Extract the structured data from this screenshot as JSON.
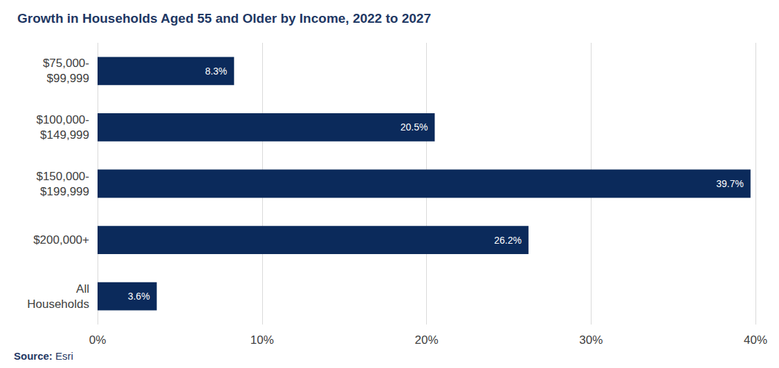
{
  "chart_data": {
    "type": "bar",
    "title": "Growth in Households Aged 55 and Older by Income, 2022 to 2027",
    "source": "Source: Esri",
    "orientation": "horizontal",
    "categories": [
      "$75,000-\n$99,999",
      "$100,000-\n$149,999",
      "$150,000-\n$199,999",
      "$200,000+",
      "All\nHouseholds"
    ],
    "values": [
      8.3,
      20.5,
      39.7,
      26.2,
      3.6
    ],
    "value_labels": [
      "8.3%",
      "20.5%",
      "39.7%",
      "26.2%",
      "3.6%"
    ],
    "data_labels": true,
    "color": "#0b2a5b",
    "xlim": [
      0,
      40
    ],
    "xticks": [
      {
        "value": 0,
        "label": "0%"
      },
      {
        "value": 10,
        "label": "10%"
      },
      {
        "value": 20,
        "label": "20%"
      },
      {
        "value": 30,
        "label": "30%"
      },
      {
        "value": 40,
        "label": "40%"
      }
    ],
    "grid": true
  }
}
